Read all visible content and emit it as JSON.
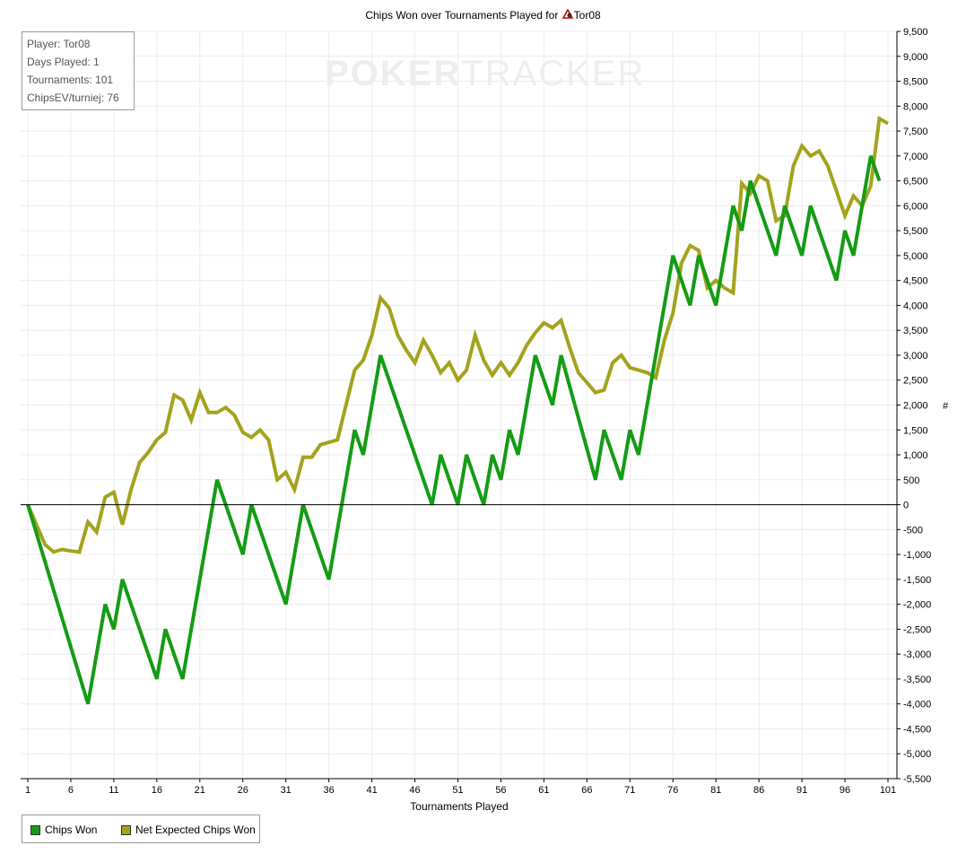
{
  "title": "Chips Won over Tournaments Played for",
  "title_player": "Tor08",
  "watermark": {
    "part1": "POKER",
    "part2": "TRACKER"
  },
  "stats": {
    "player": "Player: Tor08",
    "days": "Days Played: 1",
    "tournaments": "Tournaments: 101",
    "chips_ev": "ChipsEV/turniej: 76"
  },
  "colors": {
    "chips_won": "#149c14",
    "expected": "#a3a31e",
    "grid": "#ececec",
    "zero": "#000000"
  },
  "chart_data": {
    "type": "line",
    "xlabel": "Tournaments Played",
    "ylabel": "#",
    "xlim": [
      1,
      101
    ],
    "ylim": [
      -5500,
      9500
    ],
    "x_ticks": [
      1,
      6,
      11,
      16,
      21,
      26,
      31,
      36,
      41,
      46,
      51,
      56,
      61,
      66,
      71,
      76,
      81,
      86,
      91,
      96,
      101
    ],
    "y_ticks": [
      -5500,
      -5000,
      -4500,
      -4000,
      -3500,
      -3000,
      -2500,
      -2000,
      -1500,
      -1000,
      -500,
      0,
      500,
      1000,
      1500,
      2000,
      2500,
      3000,
      3500,
      4000,
      4500,
      5000,
      5500,
      6000,
      6500,
      7000,
      7500,
      8000,
      8500,
      9000,
      9500
    ],
    "y_tick_labels": [
      "-5,500",
      "-5,000",
      "-4,500",
      "-4,000",
      "-3,500",
      "-3,000",
      "-2,500",
      "-2,000",
      "-1,500",
      "-1,000",
      "-500",
      "0",
      "500",
      "1,000",
      "1,500",
      "2,000",
      "2,500",
      "3,000",
      "3,500",
      "4,000",
      "4,500",
      "5,000",
      "5,500",
      "6,000",
      "6,500",
      "7,000",
      "7,500",
      "8,000",
      "8,500",
      "9,000",
      "9,500"
    ],
    "grid": true,
    "legend_position": "bottom-left",
    "series": [
      {
        "name": "Chips Won",
        "points": [
          [
            1,
            0
          ],
          [
            8,
            -4000
          ],
          [
            10,
            -2000
          ],
          [
            11,
            -2500
          ],
          [
            12,
            -1500
          ],
          [
            16,
            -3500
          ],
          [
            17,
            -2500
          ],
          [
            19,
            -3500
          ],
          [
            23,
            500
          ],
          [
            26,
            -1000
          ],
          [
            27,
            0
          ],
          [
            31,
            -2000
          ],
          [
            33,
            0
          ],
          [
            36,
            -1500
          ],
          [
            39,
            1500
          ],
          [
            40,
            1000
          ],
          [
            42,
            3000
          ],
          [
            48,
            0
          ],
          [
            49,
            1000
          ],
          [
            51,
            0
          ],
          [
            52,
            1000
          ],
          [
            54,
            0
          ],
          [
            55,
            1000
          ],
          [
            56,
            500
          ],
          [
            57,
            1500
          ],
          [
            58,
            1000
          ],
          [
            60,
            3000
          ],
          [
            62,
            2000
          ],
          [
            63,
            3000
          ],
          [
            67,
            500
          ],
          [
            68,
            1500
          ],
          [
            70,
            500
          ],
          [
            71,
            1500
          ],
          [
            72,
            1000
          ],
          [
            76,
            5000
          ],
          [
            78,
            4000
          ],
          [
            79,
            5000
          ],
          [
            81,
            4000
          ],
          [
            83,
            6000
          ],
          [
            84,
            5500
          ],
          [
            85,
            6500
          ],
          [
            88,
            5000
          ],
          [
            89,
            6000
          ],
          [
            91,
            5000
          ],
          [
            92,
            6000
          ],
          [
            95,
            4500
          ],
          [
            96,
            5500
          ],
          [
            97,
            5000
          ],
          [
            99,
            7000
          ],
          [
            100,
            6500
          ]
        ]
      },
      {
        "name": "Net Expected Chips Won",
        "points": [
          [
            1,
            0
          ],
          [
            2,
            -400
          ],
          [
            3,
            -800
          ],
          [
            4,
            -950
          ],
          [
            5,
            -900
          ],
          [
            6,
            -930
          ],
          [
            7,
            -950
          ],
          [
            8,
            -350
          ],
          [
            9,
            -550
          ],
          [
            10,
            150
          ],
          [
            11,
            250
          ],
          [
            12,
            -400
          ],
          [
            13,
            300
          ],
          [
            14,
            850
          ],
          [
            15,
            1050
          ],
          [
            16,
            1300
          ],
          [
            17,
            1450
          ],
          [
            18,
            2200
          ],
          [
            19,
            2100
          ],
          [
            20,
            1700
          ],
          [
            21,
            2250
          ],
          [
            22,
            1850
          ],
          [
            23,
            1850
          ],
          [
            24,
            1950
          ],
          [
            25,
            1800
          ],
          [
            26,
            1450
          ],
          [
            27,
            1350
          ],
          [
            28,
            1500
          ],
          [
            29,
            1300
          ],
          [
            30,
            500
          ],
          [
            31,
            650
          ],
          [
            32,
            300
          ],
          [
            33,
            950
          ],
          [
            34,
            950
          ],
          [
            35,
            1200
          ],
          [
            36,
            1250
          ],
          [
            37,
            1300
          ],
          [
            38,
            2000
          ],
          [
            39,
            2700
          ],
          [
            40,
            2900
          ],
          [
            41,
            3400
          ],
          [
            42,
            4150
          ],
          [
            43,
            3950
          ],
          [
            44,
            3400
          ],
          [
            45,
            3100
          ],
          [
            46,
            2850
          ],
          [
            47,
            3300
          ],
          [
            48,
            3000
          ],
          [
            49,
            2650
          ],
          [
            50,
            2850
          ],
          [
            51,
            2500
          ],
          [
            52,
            2700
          ],
          [
            53,
            3400
          ],
          [
            54,
            2900
          ],
          [
            55,
            2600
          ],
          [
            56,
            2850
          ],
          [
            57,
            2600
          ],
          [
            58,
            2850
          ],
          [
            59,
            3200
          ],
          [
            60,
            3450
          ],
          [
            61,
            3650
          ],
          [
            62,
            3550
          ],
          [
            63,
            3700
          ],
          [
            64,
            3150
          ],
          [
            65,
            2650
          ],
          [
            66,
            2450
          ],
          [
            67,
            2250
          ],
          [
            68,
            2300
          ],
          [
            69,
            2850
          ],
          [
            70,
            3000
          ],
          [
            71,
            2750
          ],
          [
            72,
            2700
          ],
          [
            73,
            2650
          ],
          [
            74,
            2550
          ],
          [
            75,
            3300
          ],
          [
            76,
            3850
          ],
          [
            77,
            4850
          ],
          [
            78,
            5200
          ],
          [
            79,
            5100
          ],
          [
            80,
            4350
          ],
          [
            81,
            4500
          ],
          [
            82,
            4350
          ],
          [
            83,
            4250
          ],
          [
            84,
            6450
          ],
          [
            85,
            6250
          ],
          [
            86,
            6600
          ],
          [
            87,
            6500
          ],
          [
            88,
            5700
          ],
          [
            89,
            5800
          ],
          [
            90,
            6800
          ],
          [
            91,
            7200
          ],
          [
            92,
            7000
          ],
          [
            93,
            7100
          ],
          [
            94,
            6800
          ],
          [
            95,
            6300
          ],
          [
            96,
            5800
          ],
          [
            97,
            6200
          ],
          [
            98,
            6000
          ],
          [
            99,
            6400
          ],
          [
            100,
            7750
          ],
          [
            101,
            7650
          ]
        ]
      }
    ]
  }
}
